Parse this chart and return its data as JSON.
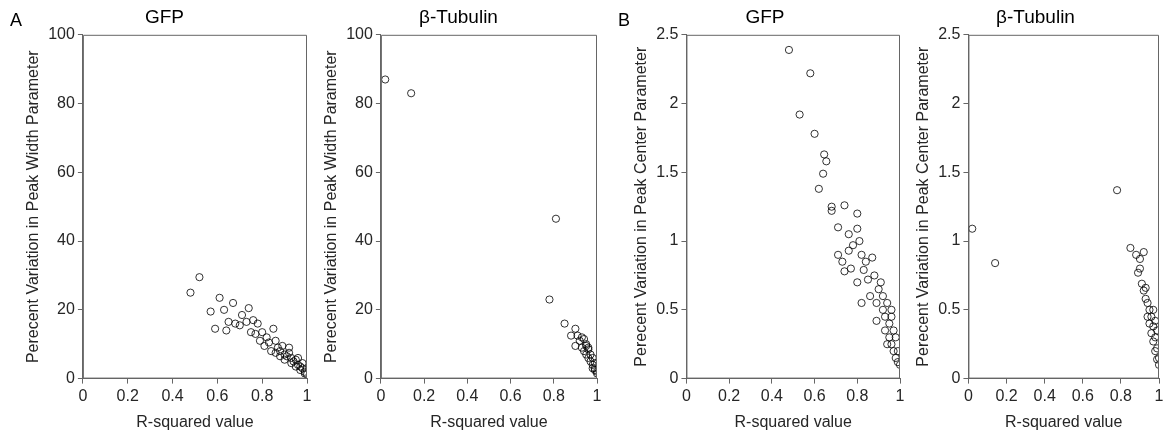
{
  "chart_data": [
    {
      "type": "scatter",
      "title": "GFP",
      "xlabel": "R-squared value",
      "ylabel": "Perecent Variation in Peak Width Parameter",
      "annotations": [
        "A"
      ],
      "marker": "circle",
      "xlim": [
        0,
        1
      ],
      "xticks": [
        0,
        0.2,
        0.4,
        0.6,
        0.8,
        1
      ],
      "ylim": [
        0,
        100
      ],
      "yticks": [
        0,
        20,
        40,
        60,
        80,
        100
      ],
      "series": [
        {
          "color": "#000000",
          "x": [
            0.48,
            0.52,
            0.57,
            0.59,
            0.61,
            0.63,
            0.64,
            0.65,
            0.67,
            0.68,
            0.7,
            0.71,
            0.74,
            0.73,
            0.76,
            0.75,
            0.78,
            0.77,
            0.79,
            0.8,
            0.82,
            0.81,
            0.85,
            0.83,
            0.84,
            0.86,
            0.87,
            0.88,
            0.89,
            0.9,
            0.91,
            0.92,
            0.93,
            0.94,
            0.95,
            0.96,
            0.97,
            0.98,
            0.99,
            1.0,
            0.99,
            0.97,
            0.95,
            0.93,
            0.9,
            0.88,
            0.86,
            0.96,
            0.98,
            0.92
          ],
          "values": [
            25,
            29.5,
            19.5,
            14.5,
            23.5,
            20,
            14,
            16.5,
            22,
            16,
            15.5,
            18.5,
            20.5,
            16.5,
            17,
            13.5,
            16,
            13,
            11,
            13.5,
            12,
            9.5,
            14.5,
            10.5,
            8,
            11,
            9,
            8,
            9.5,
            7,
            6.5,
            7.5,
            6,
            5,
            5.5,
            4,
            3.5,
            3,
            2,
            1.2,
            1.5,
            2.5,
            3.5,
            4.5,
            5.5,
            6.5,
            7.5,
            6,
            4.5,
            9
          ]
        }
      ]
    },
    {
      "type": "scatter",
      "title": "β-Tubulin",
      "xlabel": "R-squared value",
      "ylabel": "Perecent Variation in Peak Width Parameter",
      "marker": "circle",
      "xlim": [
        0,
        1
      ],
      "xticks": [
        0,
        0.2,
        0.4,
        0.6,
        0.8,
        1
      ],
      "ylim": [
        0,
        100
      ],
      "yticks": [
        0,
        20,
        40,
        60,
        80,
        100
      ],
      "series": [
        {
          "color": "#000000",
          "x": [
            0.02,
            0.14,
            0.81,
            0.78,
            0.85,
            0.88,
            0.9,
            0.9,
            0.91,
            0.92,
            0.93,
            0.94,
            0.93,
            0.94,
            0.95,
            0.95,
            0.96,
            0.96,
            0.97,
            0.97,
            0.98,
            0.98,
            0.99,
            0.99,
            1.0,
            1.0,
            0.99,
            0.98,
            0.96,
            0.95
          ],
          "values": [
            87,
            83,
            46.5,
            23,
            16,
            12.5,
            14.5,
            9.5,
            12.5,
            11,
            12,
            11.5,
            9,
            8,
            9.5,
            7,
            8.5,
            6,
            7,
            5,
            6,
            4,
            4.5,
            3,
            2,
            1.5,
            2.5,
            3,
            9,
            10
          ]
        }
      ]
    },
    {
      "type": "scatter",
      "title": "GFP",
      "xlabel": "R-squared value",
      "ylabel": "Perecent Variation in Peak Center Parameter",
      "annotations": [
        "B"
      ],
      "marker": "circle",
      "xlim": [
        0,
        1
      ],
      "xticks": [
        0,
        0.2,
        0.4,
        0.6,
        0.8,
        1
      ],
      "ylim": [
        0,
        2.5
      ],
      "yticks": [
        0,
        0.5,
        1,
        1.5,
        2,
        2.5
      ],
      "series": [
        {
          "color": "#000000",
          "x": [
            0.48,
            0.53,
            0.58,
            0.6,
            0.62,
            0.64,
            0.645,
            0.655,
            0.68,
            0.68,
            0.71,
            0.71,
            0.74,
            0.73,
            0.74,
            0.76,
            0.76,
            0.78,
            0.77,
            0.8,
            0.8,
            0.81,
            0.8,
            0.82,
            0.82,
            0.83,
            0.84,
            0.85,
            0.86,
            0.87,
            0.88,
            0.89,
            0.89,
            0.9,
            0.91,
            0.92,
            0.92,
            0.93,
            0.93,
            0.94,
            0.95,
            0.95,
            0.96,
            0.96,
            0.97,
            0.97,
            0.98,
            0.98,
            0.99,
            1.0,
            0.99,
            0.94,
            0.96
          ],
          "values": [
            2.39,
            1.92,
            2.22,
            1.78,
            1.38,
            1.49,
            1.63,
            1.58,
            1.25,
            1.22,
            1.1,
            0.9,
            1.26,
            0.85,
            0.78,
            1.05,
            0.93,
            0.97,
            0.8,
            1.2,
            1.09,
            1.0,
            0.7,
            0.55,
            0.9,
            0.79,
            0.85,
            0.72,
            0.6,
            0.88,
            0.75,
            0.55,
            0.42,
            0.65,
            0.7,
            0.5,
            0.6,
            0.45,
            0.35,
            0.55,
            0.4,
            0.3,
            0.45,
            0.25,
            0.35,
            0.2,
            0.3,
            0.15,
            0.2,
            0.1,
            0.12,
            0.25,
            0.5
          ]
        }
      ]
    },
    {
      "type": "scatter",
      "title": "β-Tubulin",
      "xlabel": "R-squared value",
      "ylabel": "Perecent Variation in Peak Center Parameter",
      "marker": "circle",
      "xlim": [
        0,
        1
      ],
      "xticks": [
        0,
        0.2,
        0.4,
        0.6,
        0.8,
        1
      ],
      "ylim": [
        0,
        2.5
      ],
      "yticks": [
        0,
        0.5,
        1,
        1.5,
        2,
        2.5
      ],
      "series": [
        {
          "color": "#000000",
          "x": [
            0.02,
            0.14,
            0.78,
            0.85,
            0.88,
            0.9,
            0.89,
            0.9,
            0.92,
            0.91,
            0.92,
            0.93,
            0.93,
            0.94,
            0.94,
            0.95,
            0.95,
            0.96,
            0.96,
            0.97,
            0.97,
            0.98,
            0.98,
            0.99,
            0.99,
            1.0,
            1.0,
            0.97,
            0.98,
            0.99
          ],
          "values": [
            1.09,
            0.84,
            1.37,
            0.95,
            0.9,
            0.87,
            0.77,
            0.8,
            0.92,
            0.69,
            0.64,
            0.66,
            0.58,
            0.55,
            0.45,
            0.5,
            0.4,
            0.45,
            0.33,
            0.38,
            0.27,
            0.3,
            0.2,
            0.22,
            0.14,
            0.1,
            0.15,
            0.5,
            0.42,
            0.35
          ]
        }
      ]
    }
  ]
}
